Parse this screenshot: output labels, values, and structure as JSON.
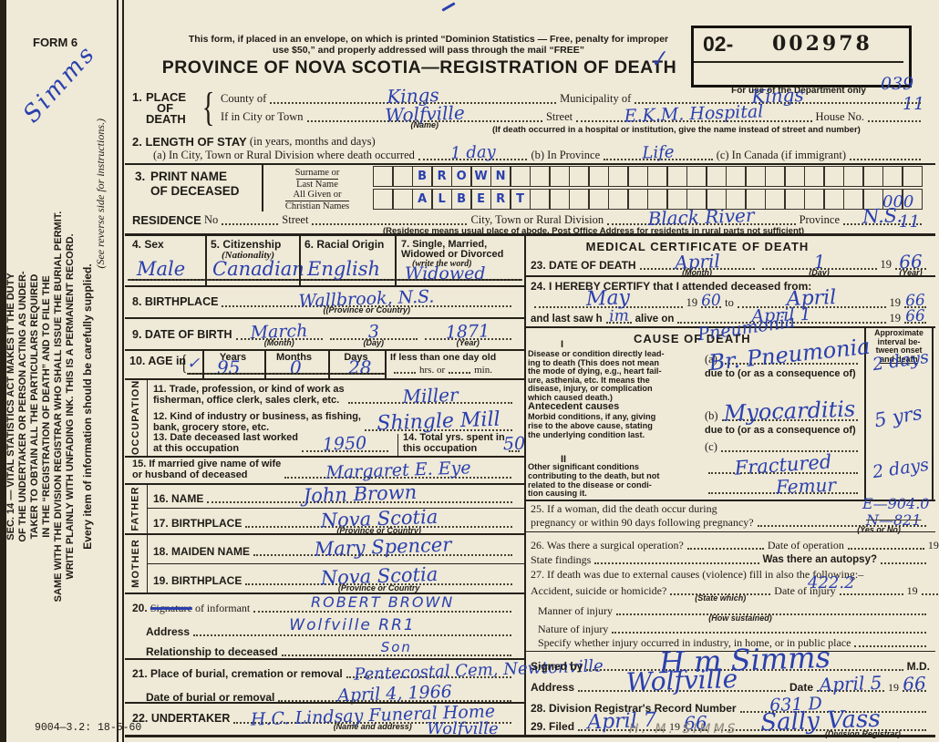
{
  "margin": {
    "form_no": "FORM 6",
    "signature": "Simms",
    "sec14_lines": [
      "SEC. 14 — VITAL STATISTICS ACT MAKES IT THE DUTY",
      "OF THE UNDERTAKER OR PERSON ACTING AS UNDER-",
      "TAKER TO OBTAIN ALL THE PARTICULARS REQUIRED",
      "IN THE “REGISTRATION OF DEATH” AND TO FILE THE",
      "SAME WITH THE DIVISION REGISTRAR WHO SHALL ISSUE THE BURIAL PERMIT.",
      "WRITE PLAINLY WITH UNFADING INK. THIS IS A PERMANENT RECORD."
    ],
    "supplied_note": "Every item of information should be carefully supplied.",
    "reverse_note": "(See reverse side for instructions.)",
    "print_code": "9004—3.2: 18-5-60"
  },
  "header": {
    "mail_notice_line1": "This form, if placed in an envelope, on which is printed “Dominion Statistics — Free, penalty for improper",
    "mail_notice_line2": "use $50,” and properly addressed will pass through the mail “FREE”",
    "title": "PROVINCE OF NOVA SCOTIA—REGISTRATION OF DEATH",
    "reg_prefix": "02-",
    "reg_number": "002978",
    "dept_note": "For use of the Department only",
    "check_mark": "✓",
    "code_right_top": "039",
    "code_right_bottom": "11"
  },
  "item1": {
    "no": "1.",
    "label1": "PLACE",
    "label2": "OF",
    "label3": "DEATH",
    "county_label": "County of",
    "county_value": "Kings",
    "municipality_label": "Municipality of",
    "municipality_value": "Kings",
    "city_label": "If in City or Town",
    "city_value": "Wolfville",
    "city_caption": "(Name)",
    "street_label": "Street",
    "street_value": "E.K.M. Hospital",
    "house_label": "House No.",
    "street_caption": "(If death occurred in a hospital or institution, give the name instead of street and number)"
  },
  "item2": {
    "label": "2. LENGTH OF STAY",
    "label_note": "(in years, months and days)",
    "a_label": "(a) In City, Town or Rural Division where death occurred",
    "a_value": "1 day",
    "b_label": "(b) In Province",
    "b_value": "Life",
    "c_label": "(c) In Canada (if immigrant)"
  },
  "item3": {
    "no": "3.",
    "label1": "PRINT NAME",
    "label2": "OF DECEASED",
    "surname_label1": "Surname or",
    "surname_label2": "Last Name",
    "given_label1": "All Given or",
    "given_label2": "Christian Names",
    "surname_boxed": "  BROWN",
    "given_boxed": "  ALBERT",
    "box_count": 28
  },
  "residence": {
    "label": "RESIDENCE",
    "no_label": "No",
    "street_label": "Street",
    "division_label": "City, Town or Rural Division",
    "division_value": "Black River",
    "province_label": "Province",
    "province_value": "N.S.",
    "caption": "(Residence means usual place of abode. Post Office Address for residents in rural parts not sufficient)",
    "code_top": "000",
    "code_bottom": "11"
  },
  "item4": {
    "label": "4. Sex",
    "value": "Male"
  },
  "item5": {
    "label": "5. Citizenship",
    "sublabel": "(Nationality)",
    "value": "Canadian"
  },
  "item6": {
    "label": "6. Racial Origin",
    "value": "English"
  },
  "item7": {
    "label1": "7. Single, Married,",
    "label2": "Widowed or Divorced",
    "sublabel": "(write the word)",
    "value": "Widowed"
  },
  "item8": {
    "label": "8. BIRTHPLACE",
    "value": "Wallbrook, N.S.",
    "caption": "((Province or Country)"
  },
  "item9": {
    "label": "9. DATE OF BIRTH",
    "month_value": "March",
    "month_caption": "(Month)",
    "day_value": "3",
    "day_caption": "(Day)",
    "year_value": "1871",
    "year_caption": "(Year)"
  },
  "item10": {
    "label": "10. AGE in",
    "check": "✓",
    "years_label": "Years",
    "years_value": "95",
    "months_label": "Months",
    "months_value": "0",
    "days_label": "Days",
    "days_value": "28",
    "less_label": "If less than one day old",
    "hrs_label": "hrs. or",
    "min_label": "min."
  },
  "occupation": {
    "side_label": "OCCUPATION",
    "i11_label1": "11. Trade, profession, or kind of work as",
    "i11_label2": "fisherman, office clerk, sales clerk, etc.",
    "i11_value": "Miller",
    "i12_label1": "12. Kind of industry or business, as fishing,",
    "i12_label2": "bank, grocery store, etc.",
    "i12_value": "Shingle Mill",
    "i13_label1": "13. Date deceased last worked",
    "i13_label2": "at this occupation",
    "i13_value": "1950",
    "i14_label1": "14. Total yrs. spent in",
    "i14_label2": "this occupation",
    "i14_value": "50"
  },
  "item15": {
    "label1": "15. If married give name of wife",
    "label2": "or husband of deceased",
    "value": "Margaret E. Eye"
  },
  "father": {
    "side_label": "FATHER",
    "name_label": "16. NAME",
    "name_value": "John Brown",
    "birth_label": "17. BIRTHPLACE",
    "birth_value": "Nova Scotia",
    "birth_caption": "(Province or Country)"
  },
  "mother": {
    "side_label": "MOTHER",
    "name_label": "18. MAIDEN NAME",
    "name_value": "Mary Spencer",
    "birth_label": "19. BIRTHPLACE",
    "birth_value": "Nova Scotia",
    "birth_caption": "(Province or Country"
  },
  "item20": {
    "no": "20.",
    "struck_word": "Signature",
    "label_rest": "of informant",
    "value": "ROBERT BROWN",
    "address_label": "Address",
    "address_value": "Wolfville RR1",
    "relationship_label": "Relationship to deceased",
    "relationship_value": "Son"
  },
  "item21": {
    "label": "21. Place of burial, cremation or removal",
    "value": "Pentecostal Cem, Newtonville",
    "date_label": "Date of burial or removal",
    "date_value": "April 4, 1966"
  },
  "item22": {
    "label": "22. UNDERTAKER",
    "value": "H.C. Lindsay Funeral Home",
    "caption": "(Name and address)",
    "value2": "Wolfville"
  },
  "medical": {
    "title": "MEDICAL CERTIFICATE OF DEATH"
  },
  "item23": {
    "label": "23. DATE OF DEATH",
    "month_value": "April",
    "month_caption": "(Month)",
    "day_value": "1",
    "day_caption": "(Day)",
    "year_prefix": "19",
    "year_value": "66",
    "year_caption": "(Year)"
  },
  "item24": {
    "label": "24. I HEREBY CERTIFY that I attended deceased from:",
    "from_value": "May",
    "from_year_prefix": "19",
    "from_year": "60",
    "to_label": "to",
    "to_value": "April",
    "to_year_prefix": "19",
    "to_year": "66",
    "saw_label1": "and last saw h",
    "saw_insert": "im",
    "saw_label2": "alive on",
    "saw_value": "April 1",
    "saw_year_prefix": "19",
    "saw_year": "66"
  },
  "cause": {
    "title": "CAUSE OF DEATH",
    "interval_lines": [
      "Approximate",
      "interval be-",
      "tween onset",
      "and death"
    ],
    "part1_no": "I",
    "part1_lines": [
      "Disease or condition directly lead-",
      "ing to death (This does not mean",
      "the mode of dying, e.g., heart fail-",
      "ure, asthenia, etc. It means the",
      "disease, injury, or complication",
      "which caused death.)"
    ],
    "a_label": "(a)",
    "a_value": "Br. Pneumonia",
    "a_value_above": "Pneumonia",
    "a_interval": "2 days",
    "due_a": "due to (or as a consequence of)",
    "ante_label": "Antecedent causes",
    "ante_lines": [
      "Morbid conditions, if any, giving",
      "rise to the above cause, stating",
      "the underlying condition last."
    ],
    "b_label": "(b)",
    "b_value": "Myocarditis",
    "b_interval": "5 yrs",
    "due_b": "due to (or as a consequence of)",
    "c_label": "(c)",
    "part2_no": "II",
    "part2_lines": [
      "Other significant conditions",
      "contributing to the death, but not",
      "related to the disease or condi-",
      "tion causing it."
    ],
    "other_value1": "Fractured",
    "other_value2": "Femur",
    "other_interval": "2 days"
  },
  "item25": {
    "label1": "25. If a woman, did the death occur during",
    "label2": "pregnancy or within 90 days following pregnancy?",
    "caption": "(Yes or No)",
    "code1": "E—904.0",
    "code2": "N—821"
  },
  "item26": {
    "label": "26. Was there a surgical operation?",
    "op_date_label": "Date of operation",
    "op_year": "19",
    "findings_label": "State findings",
    "autopsy_label": "Was there an autopsy?"
  },
  "item27": {
    "label": "27. If death was due to external causes (violence) fill in also the following:–",
    "code": "422.2",
    "accident_label": "Accident, suicide or homicide?",
    "accident_caption": "(State which)",
    "injury_date_label": "Date of injury",
    "injury_year": "19",
    "manner_label": "Manner of injury",
    "manner_caption": "(How sustained)",
    "nature_label": "Nature of injury",
    "specify_label": "Specify whether injury occurred in industry, in home, or in public place"
  },
  "certifier": {
    "signed_label": "Signed by",
    "signature": "H m Simms",
    "md_label": "M.D.",
    "address_label": "Address",
    "address_value": "Wolfville",
    "date_label": "Date",
    "date_value": "April 5",
    "year_prefix": "19",
    "year_value": "66"
  },
  "item28": {
    "label": "28. Division Registrar's Record Number",
    "value": "631 D"
  },
  "item29": {
    "label": "29. Filed",
    "date_value": "April 7",
    "year_prefix": "19",
    "year_value": "66",
    "registrar_value": "Sally Vass",
    "caption": "(Division Registrar)",
    "pencil_note": "H. M. SIMMS"
  }
}
